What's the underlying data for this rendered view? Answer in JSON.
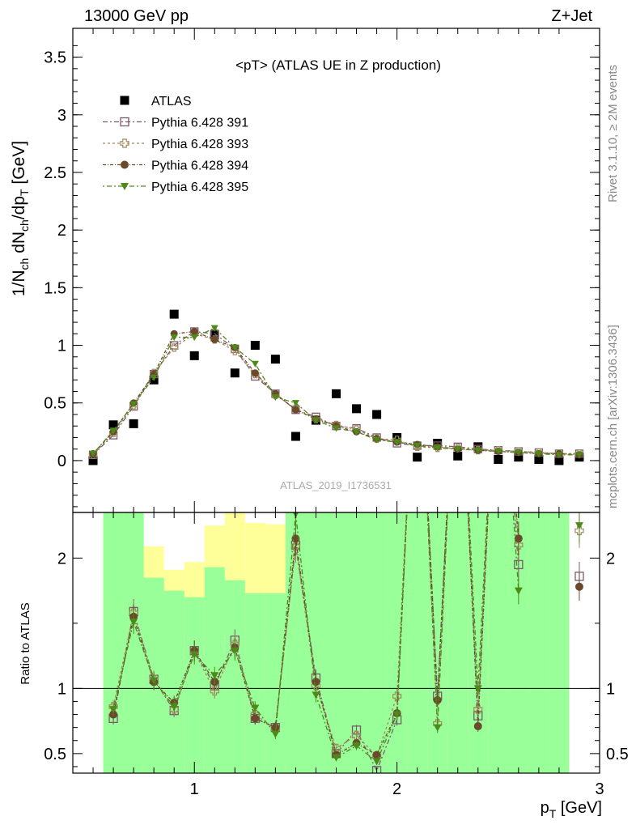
{
  "header": {
    "left": "13000 GeV pp",
    "right": "Z+Jet"
  },
  "side_texts": {
    "rivet": "Rivet 3.1.10, ≥ 2M events",
    "mcplots": "mcplots.cern.ch [arXiv:1306.3436]"
  },
  "watermark": "ATLAS_2019_I1736531",
  "chart_data": [
    {
      "type": "scatter",
      "title": "<pT> (ATLAS UE in Z production)",
      "ylabel": "1/N_ch dN_ch/dp_T [GeV]",
      "xlim": [
        0.4,
        3.0
      ],
      "ylim": [
        -0.45,
        3.75
      ],
      "x_ticks": [
        1,
        2,
        3
      ],
      "y_ticks": [
        0,
        0.5,
        1,
        1.5,
        2,
        2.5,
        3,
        3.5
      ],
      "y_tick_labels": [
        "0",
        "0.5",
        "1",
        "1.5",
        "2",
        "2.5",
        "3",
        "3.5"
      ],
      "legend_position": "top-left",
      "x": [
        0.5,
        0.6,
        0.7,
        0.8,
        0.9,
        1.0,
        1.1,
        1.2,
        1.3,
        1.4,
        1.5,
        1.6,
        1.7,
        1.8,
        1.9,
        2.0,
        2.1,
        2.2,
        2.3,
        2.4,
        2.5,
        2.6,
        2.7,
        2.8,
        2.9
      ],
      "series": [
        {
          "name": "ATLAS",
          "color": "#000000",
          "marker": "square-filled",
          "values": [
            0.0,
            0.31,
            0.32,
            0.7,
            1.27,
            0.91,
            1.09,
            0.76,
            1.0,
            0.88,
            0.21,
            0.35,
            0.58,
            0.45,
            0.4,
            0.2,
            0.03,
            0.15,
            0.04,
            0.12,
            0.01,
            0.03,
            0.01,
            0.0,
            0.03
          ]
        },
        {
          "name": "Pythia 6.428 391",
          "color": "#7b5a6c",
          "marker": "square-open",
          "values": [
            0.05,
            0.22,
            0.47,
            0.75,
            1.0,
            1.12,
            1.1,
            0.97,
            0.73,
            0.58,
            0.44,
            0.38,
            0.3,
            0.28,
            0.2,
            0.15,
            0.13,
            0.13,
            0.12,
            0.1,
            0.09,
            0.08,
            0.07,
            0.06,
            0.06
          ]
        },
        {
          "name": "Pythia 6.428 393",
          "color": "#a0895a",
          "marker": "cross-open",
          "values": [
            0.05,
            0.24,
            0.48,
            0.76,
            0.98,
            1.1,
            1.05,
            0.95,
            0.75,
            0.57,
            0.45,
            0.36,
            0.31,
            0.27,
            0.19,
            0.18,
            0.12,
            0.11,
            0.11,
            0.09,
            0.09,
            0.08,
            0.07,
            0.06,
            0.06
          ]
        },
        {
          "name": "Pythia 6.428 394",
          "color": "#6b4a2b",
          "marker": "circle-filled",
          "values": [
            0.06,
            0.25,
            0.5,
            0.75,
            1.1,
            1.12,
            1.05,
            0.98,
            0.76,
            0.58,
            0.44,
            0.36,
            0.3,
            0.25,
            0.19,
            0.16,
            0.14,
            0.12,
            0.1,
            0.09,
            0.08,
            0.07,
            0.06,
            0.06,
            0.05
          ]
        },
        {
          "name": "Pythia 6.428 395",
          "color": "#4e8a1a",
          "marker": "triangle-down-filled",
          "values": [
            0.06,
            0.26,
            0.49,
            0.72,
            1.07,
            1.07,
            1.15,
            0.98,
            0.84,
            0.55,
            0.5,
            0.35,
            0.28,
            0.25,
            0.18,
            0.16,
            0.13,
            0.11,
            0.1,
            0.09,
            0.08,
            0.07,
            0.06,
            0.05,
            0.05
          ]
        }
      ]
    },
    {
      "type": "line",
      "xlabel": "p_T [GeV]",
      "ylabel": "Ratio to ATLAS",
      "xlim": [
        0.4,
        3.0
      ],
      "ylim": [
        0.35,
        2.35
      ],
      "x_ticks": [
        1,
        2,
        3
      ],
      "x_tick_labels": [
        "1",
        "2",
        "3"
      ],
      "y_ticks": [
        0.5,
        1,
        2
      ],
      "y_tick_labels": [
        "0.5",
        "1",
        "2"
      ],
      "reference_line": 1,
      "bands": {
        "x_edges": [
          0.55,
          0.65,
          0.75,
          0.85,
          0.95,
          1.05,
          1.15,
          1.25,
          1.35,
          1.45,
          1.55,
          1.65,
          1.75,
          1.85,
          1.95,
          2.05,
          2.15,
          2.25,
          2.35,
          2.45,
          2.55,
          2.65,
          2.75,
          2.85,
          2.95
        ],
        "green_low": [
          0.35,
          0.35,
          0.35,
          0.35,
          0.35,
          0.35,
          0.35,
          0.35,
          0.35,
          0.35,
          0.35,
          0.35,
          0.35,
          0.35,
          0.35,
          0.35,
          0.35,
          0.35,
          0.35,
          0.35,
          0.35,
          0.35,
          0.35,
          null,
          0.35
        ],
        "green_high": [
          2.35,
          2.35,
          1.85,
          1.75,
          1.7,
          1.93,
          1.83,
          1.73,
          1.73,
          2.35,
          2.35,
          2.35,
          2.35,
          2.35,
          2.35,
          2.35,
          2.35,
          2.35,
          2.35,
          2.35,
          2.35,
          2.35,
          2.35,
          null,
          2.35
        ],
        "yellow_low": [
          0.35,
          0.35,
          0.35,
          0.6,
          0.35,
          0.35,
          0.35,
          0.35,
          0.35,
          0.35,
          0.35,
          0.35,
          0.35,
          0.35,
          0.35,
          0.35,
          0.35,
          0.35,
          0.35,
          0.35,
          0.35,
          0.35,
          0.35,
          null,
          0.35
        ],
        "yellow_high": [
          2.35,
          2.35,
          2.09,
          1.91,
          1.97,
          2.25,
          2.35,
          2.27,
          2.26,
          2.35,
          2.35,
          2.35,
          2.35,
          2.35,
          2.35,
          2.35,
          2.35,
          2.35,
          2.35,
          2.35,
          2.35,
          2.35,
          2.35,
          null,
          2.35
        ]
      },
      "x": [
        0.5,
        0.6,
        0.7,
        0.8,
        0.9,
        1.0,
        1.1,
        1.2,
        1.3,
        1.4,
        1.5,
        1.6,
        1.7,
        1.8,
        1.9,
        2.0,
        2.1,
        2.2,
        2.3,
        2.4,
        2.5,
        2.6,
        2.7,
        2.8,
        2.9
      ],
      "series": [
        {
          "name": "Pythia 6.428 391",
          "color": "#7b5a6c",
          "marker": "square-open",
          "values": [
            null,
            0.77,
            1.59,
            1.07,
            0.83,
            1.29,
            1.02,
            1.37,
            0.77,
            0.7,
            2.1,
            1.08,
            0.5,
            0.68,
            0.37,
            0.76,
            4.0,
            0.94,
            4.0,
            0.79,
            4.0,
            1.95,
            null,
            null,
            1.86
          ]
        },
        {
          "name": "Pythia 6.428 393",
          "color": "#a0895a",
          "marker": "cross-open",
          "values": [
            null,
            0.86,
            1.58,
            1.07,
            0.84,
            1.28,
            0.98,
            1.34,
            0.8,
            0.69,
            2.09,
            1.02,
            0.54,
            0.64,
            0.48,
            0.94,
            4.0,
            0.73,
            4.0,
            0.84,
            4.0,
            2.1,
            null,
            null,
            2.21
          ]
        },
        {
          "name": "Pythia 6.428 394",
          "color": "#6b4a2b",
          "marker": "circle-filled",
          "values": [
            null,
            0.8,
            1.55,
            1.05,
            0.89,
            1.29,
            1.05,
            1.31,
            0.77,
            0.7,
            2.15,
            1.05,
            0.49,
            0.58,
            0.49,
            0.81,
            4.0,
            0.91,
            4.0,
            0.71,
            4.0,
            2.15,
            null,
            null,
            1.78
          ]
        },
        {
          "name": "Pythia 6.428 395",
          "color": "#4e8a1a",
          "marker": "triangle-down-filled",
          "values": [
            null,
            0.84,
            1.51,
            1.06,
            0.86,
            1.26,
            1.1,
            1.29,
            0.85,
            0.65,
            2.34,
            0.95,
            0.47,
            0.56,
            0.44,
            0.8,
            4.0,
            0.7,
            4.0,
            1.0,
            4.0,
            1.75,
            null,
            null,
            2.25
          ]
        }
      ]
    }
  ]
}
